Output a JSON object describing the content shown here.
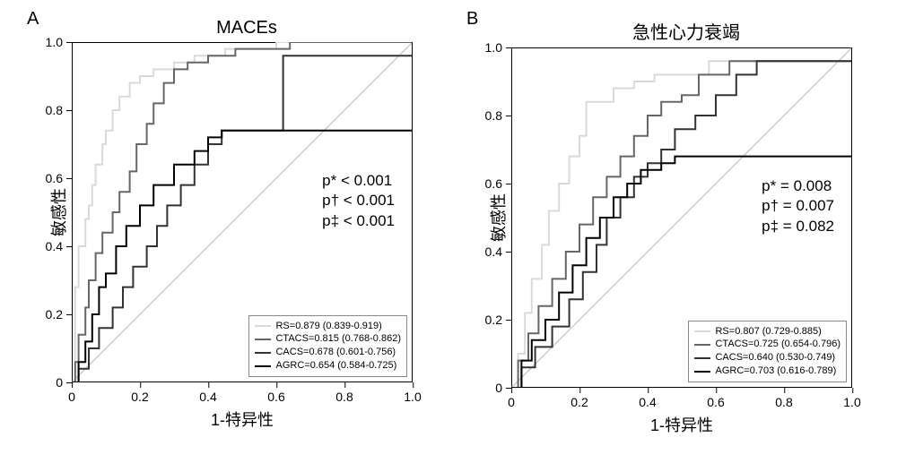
{
  "background_color": "#ffffff",
  "grid_color": "#000000",
  "panelA": {
    "letter": "A",
    "title": "MACEs",
    "ylabel": "敏感性",
    "xlabel": "1-特异性",
    "xlim": [
      0,
      1
    ],
    "ylim": [
      0,
      1
    ],
    "ticks": [
      0,
      0.2,
      0.4,
      0.6,
      0.8,
      1.0
    ],
    "tick_labels": [
      "0",
      "0.2",
      "0.4",
      "0.6",
      "0.8",
      "1.0"
    ],
    "diag_color": "#cccccc",
    "pvals": [
      "p* < 0.001",
      "p† < 0.001",
      "p‡ < 0.001"
    ],
    "series": [
      {
        "name": "RS",
        "label": "RS=0.879 (0.839-0.919)",
        "color": "#d9d9d9",
        "width": 2,
        "pts": [
          [
            0,
            0
          ],
          [
            0.01,
            0.28
          ],
          [
            0.02,
            0.34
          ],
          [
            0.02,
            0.4
          ],
          [
            0.04,
            0.48
          ],
          [
            0.05,
            0.52
          ],
          [
            0.06,
            0.58
          ],
          [
            0.07,
            0.64
          ],
          [
            0.09,
            0.7
          ],
          [
            0.1,
            0.74
          ],
          [
            0.12,
            0.8
          ],
          [
            0.14,
            0.84
          ],
          [
            0.17,
            0.88
          ],
          [
            0.2,
            0.9
          ],
          [
            0.24,
            0.92
          ],
          [
            0.3,
            0.94
          ],
          [
            0.36,
            0.96
          ],
          [
            0.45,
            0.98
          ],
          [
            0.6,
            1.0
          ],
          [
            1.0,
            1.0
          ]
        ]
      },
      {
        "name": "CTACS",
        "label": "CTACS=0.815 (0.768-0.862)",
        "color": "#666666",
        "width": 2,
        "pts": [
          [
            0,
            0
          ],
          [
            0.01,
            0.06
          ],
          [
            0.02,
            0.14
          ],
          [
            0.04,
            0.22
          ],
          [
            0.05,
            0.3
          ],
          [
            0.07,
            0.38
          ],
          [
            0.09,
            0.44
          ],
          [
            0.12,
            0.5
          ],
          [
            0.14,
            0.56
          ],
          [
            0.17,
            0.62
          ],
          [
            0.19,
            0.7
          ],
          [
            0.22,
            0.76
          ],
          [
            0.24,
            0.82
          ],
          [
            0.27,
            0.88
          ],
          [
            0.3,
            0.92
          ],
          [
            0.34,
            0.94
          ],
          [
            0.4,
            0.96
          ],
          [
            0.48,
            0.98
          ],
          [
            0.64,
            1.0
          ],
          [
            1.0,
            1.0
          ]
        ]
      },
      {
        "name": "CACS",
        "label": "CACS=0.678 (0.601-0.756)",
        "color": "#333333",
        "width": 2,
        "pts": [
          [
            0,
            0
          ],
          [
            0.02,
            0.04
          ],
          [
            0.05,
            0.1
          ],
          [
            0.08,
            0.16
          ],
          [
            0.12,
            0.22
          ],
          [
            0.15,
            0.28
          ],
          [
            0.18,
            0.34
          ],
          [
            0.22,
            0.4
          ],
          [
            0.25,
            0.46
          ],
          [
            0.28,
            0.52
          ],
          [
            0.32,
            0.58
          ],
          [
            0.36,
            0.64
          ],
          [
            0.4,
            0.7
          ],
          [
            0.44,
            0.74
          ],
          [
            0.46,
            0.74
          ],
          [
            0.62,
            0.96
          ],
          [
            0.68,
            0.96
          ],
          [
            1.0,
            1.0
          ]
        ]
      },
      {
        "name": "AGRC",
        "label": "AGRC=0.654 (0.584-0.725)",
        "color": "#000000",
        "width": 2,
        "pts": [
          [
            0,
            0
          ],
          [
            0.02,
            0.06
          ],
          [
            0.04,
            0.12
          ],
          [
            0.06,
            0.2
          ],
          [
            0.08,
            0.28
          ],
          [
            0.1,
            0.32
          ],
          [
            0.13,
            0.4
          ],
          [
            0.16,
            0.46
          ],
          [
            0.2,
            0.52
          ],
          [
            0.24,
            0.58
          ],
          [
            0.3,
            0.64
          ],
          [
            0.36,
            0.68
          ],
          [
            0.4,
            0.72
          ],
          [
            0.44,
            0.74
          ],
          [
            1.0,
            1.0
          ]
        ]
      }
    ]
  },
  "panelB": {
    "letter": "B",
    "title": "急性心力衰竭",
    "ylabel": "敏感性",
    "xlabel": "1-特异性",
    "xlim": [
      0,
      1
    ],
    "ylim": [
      0,
      1
    ],
    "ticks": [
      0,
      0.2,
      0.4,
      0.6,
      0.8,
      1.0
    ],
    "tick_labels": [
      "0",
      "0.2",
      "0.4",
      "0.6",
      "0.8",
      "1.0"
    ],
    "diag_color": "#cccccc",
    "pvals": [
      "p* = 0.008",
      "p† = 0.007",
      "p‡ = 0.082"
    ],
    "series": [
      {
        "name": "RS",
        "label": "RS=0.807 (0.729-0.885)",
        "color": "#d9d9d9",
        "width": 2,
        "pts": [
          [
            0,
            0
          ],
          [
            0.02,
            0.1
          ],
          [
            0.04,
            0.22
          ],
          [
            0.06,
            0.32
          ],
          [
            0.09,
            0.42
          ],
          [
            0.11,
            0.52
          ],
          [
            0.14,
            0.6
          ],
          [
            0.17,
            0.68
          ],
          [
            0.2,
            0.74
          ],
          [
            0.22,
            0.84
          ],
          [
            0.24,
            0.84
          ],
          [
            0.3,
            0.88
          ],
          [
            0.36,
            0.9
          ],
          [
            0.42,
            0.92
          ],
          [
            0.44,
            0.92
          ],
          [
            0.58,
            0.96
          ],
          [
            0.72,
            0.96
          ],
          [
            1.0,
            1.0
          ]
        ]
      },
      {
        "name": "CTACS",
        "label": "CTACS=0.725 (0.654-0.796)",
        "color": "#666666",
        "width": 2,
        "pts": [
          [
            0,
            0
          ],
          [
            0.02,
            0.08
          ],
          [
            0.05,
            0.16
          ],
          [
            0.08,
            0.24
          ],
          [
            0.12,
            0.32
          ],
          [
            0.16,
            0.4
          ],
          [
            0.2,
            0.48
          ],
          [
            0.24,
            0.56
          ],
          [
            0.28,
            0.62
          ],
          [
            0.32,
            0.68
          ],
          [
            0.36,
            0.74
          ],
          [
            0.4,
            0.8
          ],
          [
            0.44,
            0.84
          ],
          [
            0.5,
            0.86
          ],
          [
            0.55,
            0.92
          ],
          [
            0.64,
            0.96
          ],
          [
            0.66,
            0.96
          ],
          [
            1.0,
            1.0
          ]
        ]
      },
      {
        "name": "CACS",
        "label": "CACS=0.640 (0.530-0.749)",
        "color": "#333333",
        "width": 2,
        "pts": [
          [
            0,
            0
          ],
          [
            0.03,
            0.06
          ],
          [
            0.07,
            0.12
          ],
          [
            0.12,
            0.18
          ],
          [
            0.17,
            0.26
          ],
          [
            0.21,
            0.34
          ],
          [
            0.25,
            0.42
          ],
          [
            0.28,
            0.5
          ],
          [
            0.32,
            0.56
          ],
          [
            0.36,
            0.62
          ],
          [
            0.4,
            0.66
          ],
          [
            0.44,
            0.7
          ],
          [
            0.48,
            0.76
          ],
          [
            0.54,
            0.8
          ],
          [
            0.6,
            0.86
          ],
          [
            0.66,
            0.92
          ],
          [
            0.72,
            0.96
          ],
          [
            1.0,
            1.0
          ]
        ]
      },
      {
        "name": "AGRC",
        "label": "AGRC=0.703 (0.616-0.789)",
        "color": "#000000",
        "width": 2,
        "pts": [
          [
            0,
            0
          ],
          [
            0.03,
            0.08
          ],
          [
            0.06,
            0.14
          ],
          [
            0.1,
            0.2
          ],
          [
            0.14,
            0.28
          ],
          [
            0.18,
            0.36
          ],
          [
            0.22,
            0.44
          ],
          [
            0.26,
            0.5
          ],
          [
            0.3,
            0.56
          ],
          [
            0.34,
            0.6
          ],
          [
            0.38,
            0.64
          ],
          [
            0.44,
            0.66
          ],
          [
            0.48,
            0.68
          ],
          [
            1.0,
            1.0
          ]
        ]
      }
    ]
  }
}
